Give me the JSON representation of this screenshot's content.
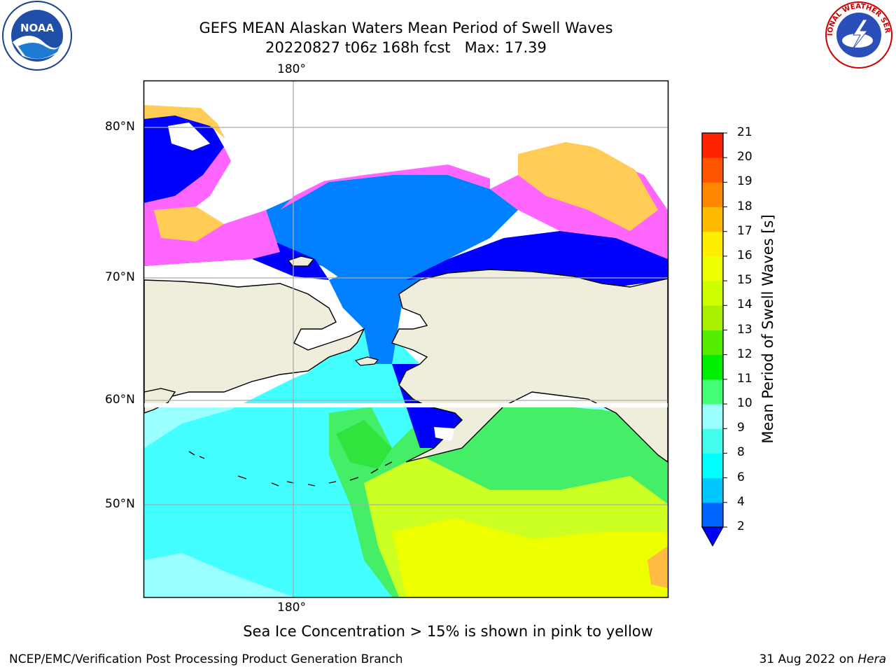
{
  "header": {
    "title": "GEFS MEAN Alaskan Waters Mean Period of Swell Waves",
    "subtitle": "20220827 t06z 168h fcst   Max: 17.39"
  },
  "logos": {
    "noaa_text": "NOAA",
    "nws_text": "NATIONAL WEATHER SERVICE"
  },
  "map": {
    "lon_label_top": "180°",
    "lon_label_bottom": "180°",
    "lat_labels": [
      "80°N",
      "70°N",
      "60°N",
      "50°N"
    ],
    "colors": {
      "ocean_deep_blue": "#0000ff",
      "ocean_blue": "#0080ff",
      "ocean_cyan": "#44ffff",
      "ocean_light_cyan": "#99ffff",
      "ocean_green": "#44ee66",
      "ocean_lime": "#ccff22",
      "ocean_yellow": "#eeff00",
      "land": "#efeddc",
      "ice_pink": "#ff66ff",
      "ice_orange": "#ffcc55",
      "grid": "#aaaaaa"
    }
  },
  "colorbar": {
    "label": "Mean Period of Swell Waves [s]",
    "ticks": [
      "2",
      "4",
      "6",
      "8",
      "9",
      "10",
      "11",
      "12",
      "13",
      "14",
      "15",
      "16",
      "17",
      "18",
      "19",
      "20",
      "21"
    ],
    "colors": [
      "#0064ff",
      "#00c8ff",
      "#00ffff",
      "#44ffee",
      "#99ffff",
      "#44ff77",
      "#00ee00",
      "#55ee00",
      "#aaee00",
      "#ccff00",
      "#eeff00",
      "#ffee00",
      "#ffbb00",
      "#ff8800",
      "#ff5500",
      "#ff2200"
    ],
    "extend_color": "#0000ff"
  },
  "footnote": "Sea Ice Concentration > 15% is shown in pink to yellow",
  "footer": {
    "left": "NCEP/EMC/Verification Post Processing Product Generation Branch",
    "right_date": "31 Aug 2022 on ",
    "right_host": "Hera"
  }
}
